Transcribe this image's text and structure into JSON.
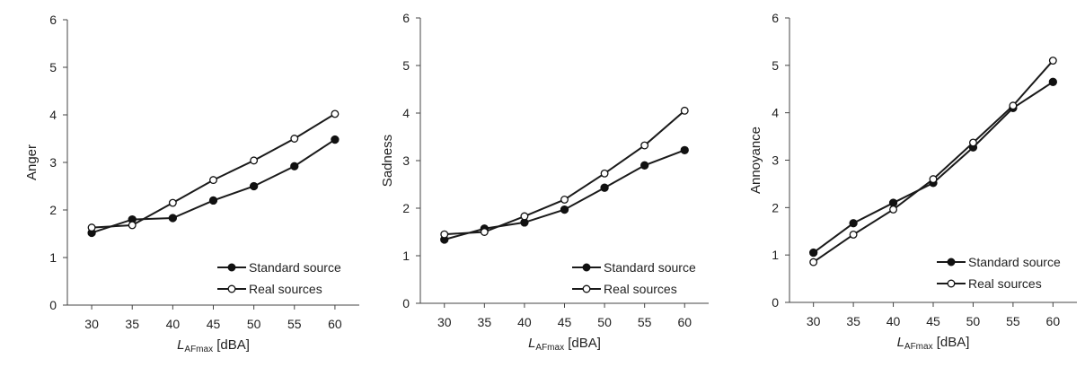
{
  "chart_data": [
    {
      "type": "line",
      "x": [
        30,
        35,
        40,
        45,
        50,
        55,
        60
      ],
      "xlabel_main": "L",
      "xlabel_sub": "AFmax",
      "xlabel_unit": " [dBA]",
      "ylabel": "Anger",
      "xlim": [
        27,
        63
      ],
      "ylim": [
        0,
        6
      ],
      "xticks": [
        "30",
        "35",
        "40",
        "45",
        "50",
        "55",
        "60"
      ],
      "yticks": [
        "0",
        "1",
        "2",
        "3",
        "4",
        "5",
        "6"
      ],
      "legend_position": "bottom-right",
      "grid": false,
      "series": [
        {
          "name": "Standard source",
          "marker": "filled",
          "values": [
            1.52,
            1.8,
            1.83,
            2.2,
            2.5,
            2.92,
            3.48
          ]
        },
        {
          "name": "Real sources",
          "marker": "open",
          "values": [
            1.63,
            1.68,
            2.15,
            2.63,
            3.04,
            3.5,
            4.02
          ]
        }
      ]
    },
    {
      "type": "line",
      "x": [
        30,
        35,
        40,
        45,
        50,
        55,
        60
      ],
      "xlabel_main": "L",
      "xlabel_sub": "AFmax",
      "xlabel_unit": " [dBA]",
      "ylabel": "Sadness",
      "xlim": [
        27,
        63
      ],
      "ylim": [
        0,
        6
      ],
      "xticks": [
        "30",
        "35",
        "40",
        "45",
        "50",
        "55",
        "60"
      ],
      "yticks": [
        "0",
        "1",
        "2",
        "3",
        "4",
        "5",
        "6"
      ],
      "legend_position": "bottom-right",
      "grid": false,
      "series": [
        {
          "name": "Standard source",
          "marker": "filled",
          "values": [
            1.34,
            1.57,
            1.7,
            1.97,
            2.43,
            2.9,
            3.22
          ]
        },
        {
          "name": "Real sources",
          "marker": "open",
          "values": [
            1.45,
            1.5,
            1.83,
            2.18,
            2.73,
            3.32,
            4.05
          ]
        }
      ]
    },
    {
      "type": "line",
      "x": [
        30,
        35,
        40,
        45,
        50,
        55,
        60
      ],
      "xlabel_main": "L",
      "xlabel_sub": "AFmax",
      "xlabel_unit": " [dBA]",
      "ylabel": "Annoyance",
      "xlim": [
        27,
        63
      ],
      "ylim": [
        0,
        6
      ],
      "xticks": [
        "30",
        "35",
        "40",
        "45",
        "50",
        "55",
        "60"
      ],
      "yticks": [
        "0",
        "1",
        "2",
        "3",
        "4",
        "5",
        "6"
      ],
      "legend_position": "bottom-right",
      "grid": false,
      "series": [
        {
          "name": "Standard source",
          "marker": "filled",
          "values": [
            1.05,
            1.67,
            2.1,
            2.52,
            3.27,
            4.1,
            4.65
          ]
        },
        {
          "name": "Real sources",
          "marker": "open",
          "values": [
            0.85,
            1.43,
            1.96,
            2.6,
            3.37,
            4.15,
            5.1
          ]
        }
      ]
    }
  ]
}
